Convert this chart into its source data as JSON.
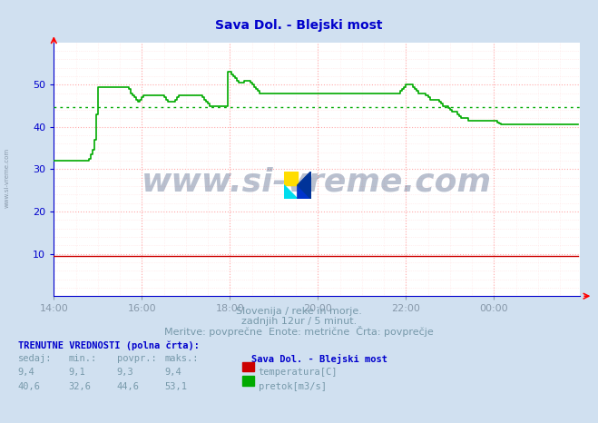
{
  "title": "Sava Dol. - Blejski most",
  "title_color": "#0000cc",
  "bg_color": "#d0e0f0",
  "plot_bg_color": "#ffffff",
  "grid_color_major": "#ffaaaa",
  "grid_color_minor": "#ffe0e0",
  "xlabel_color": "#8899aa",
  "ylabel_color": "#0000cc",
  "xlim": [
    0,
    287
  ],
  "ylim": [
    0,
    60
  ],
  "yticks": [
    10,
    20,
    30,
    40,
    50
  ],
  "xtick_labels": [
    "14:00",
    "16:00",
    "18:00",
    "20:00",
    "22:00",
    "00:00"
  ],
  "xtick_positions": [
    0,
    48,
    96,
    144,
    192,
    240
  ],
  "avg_pretok": 44.6,
  "avg_temperatura": 9.3,
  "watermark": "www.si-vreme.com",
  "sub_text1": "Slovenija / reke in morje.",
  "sub_text2": "zadnjih 12ur / 5 minut.",
  "sub_text3": "Meritve: povprečne  Enote: metrične  Črta: povprečje",
  "footer_bold": "TRENUTNE VREDNOSTI (polna črta):",
  "footer_cols": [
    "sedaj:",
    "min.:",
    "povpr.:",
    "maks.:"
  ],
  "footer_station": "Sava Dol. - Blejski most",
  "footer_temp": {
    "sedaj": "9,4",
    "min": "9,1",
    "povpr": "9,3",
    "maks": "9,4"
  },
  "footer_pretok": {
    "sedaj": "40,6",
    "min": "32,6",
    "povpr": "44,6",
    "maks": "53,1"
  },
  "temp_color": "#cc0000",
  "pretok_color": "#00aa00",
  "pretok_data": [
    32.0,
    32.0,
    32.0,
    32.0,
    32.0,
    32.0,
    32.0,
    32.0,
    32.0,
    32.0,
    32.0,
    32.0,
    32.0,
    32.0,
    32.0,
    32.0,
    32.0,
    32.0,
    32.0,
    32.5,
    33.5,
    34.5,
    37.0,
    43.0,
    49.5,
    49.5,
    49.5,
    49.5,
    49.5,
    49.5,
    49.5,
    49.5,
    49.5,
    49.5,
    49.5,
    49.5,
    49.5,
    49.5,
    49.5,
    49.5,
    49.5,
    49.0,
    48.0,
    47.5,
    47.0,
    46.5,
    46.0,
    46.5,
    47.0,
    47.5,
    47.5,
    47.5,
    47.5,
    47.5,
    47.5,
    47.5,
    47.5,
    47.5,
    47.5,
    47.5,
    47.0,
    46.5,
    46.0,
    46.0,
    46.0,
    46.0,
    46.5,
    47.0,
    47.5,
    47.5,
    47.5,
    47.5,
    47.5,
    47.5,
    47.5,
    47.5,
    47.5,
    47.5,
    47.5,
    47.5,
    47.5,
    47.0,
    46.5,
    46.0,
    45.5,
    45.0,
    45.0,
    45.0,
    45.0,
    45.0,
    45.0,
    45.0,
    45.0,
    45.0,
    45.0,
    53.0,
    53.0,
    52.5,
    52.0,
    51.5,
    51.0,
    50.5,
    50.5,
    50.5,
    51.0,
    51.0,
    51.0,
    50.5,
    50.0,
    49.5,
    49.0,
    48.5,
    48.0,
    48.0,
    48.0,
    48.0,
    48.0,
    48.0,
    48.0,
    48.0,
    48.0,
    48.0,
    48.0,
    48.0,
    48.0,
    48.0,
    48.0,
    48.0,
    48.0,
    48.0,
    48.0,
    48.0,
    48.0,
    48.0,
    48.0,
    48.0,
    48.0,
    48.0,
    48.0,
    48.0,
    48.0,
    48.0,
    48.0,
    48.0,
    48.0,
    48.0,
    48.0,
    48.0,
    48.0,
    48.0,
    48.0,
    48.0,
    48.0,
    48.0,
    48.0,
    48.0,
    48.0,
    48.0,
    48.0,
    48.0,
    48.0,
    48.0,
    48.0,
    48.0,
    48.0,
    48.0,
    48.0,
    48.0,
    48.0,
    48.0,
    48.0,
    48.0,
    48.0,
    48.0,
    48.0,
    48.0,
    48.0,
    48.0,
    48.0,
    48.0,
    48.0,
    48.0,
    48.0,
    48.0,
    48.0,
    48.0,
    48.0,
    48.0,
    48.0,
    48.5,
    49.0,
    49.5,
    50.0,
    50.0,
    50.0,
    50.0,
    49.5,
    49.0,
    48.5,
    48.0,
    48.0,
    48.0,
    48.0,
    47.5,
    47.0,
    46.5,
    46.5,
    46.5,
    46.5,
    46.5,
    46.0,
    45.5,
    45.0,
    45.0,
    45.0,
    44.5,
    44.0,
    43.5,
    43.5,
    43.5,
    43.0,
    42.5,
    42.0,
    42.0,
    42.0,
    42.0,
    41.5,
    41.5,
    41.5,
    41.5,
    41.5,
    41.5,
    41.5,
    41.5,
    41.5,
    41.5,
    41.5,
    41.5,
    41.5,
    41.5,
    41.5,
    41.5,
    41.0,
    40.8,
    40.6,
    40.6,
    40.6,
    40.6,
    40.6,
    40.6,
    40.6,
    40.6,
    40.6,
    40.6,
    40.6,
    40.6,
    40.6,
    40.6,
    40.6,
    40.6,
    40.6,
    40.6,
    40.6,
    40.6,
    40.6,
    40.6,
    40.6,
    40.6,
    40.6,
    40.6,
    40.6,
    40.6,
    40.6,
    40.6,
    40.6,
    40.6,
    40.6,
    40.6,
    40.6,
    40.6,
    40.6,
    40.6,
    40.6,
    40.6,
    40.6,
    40.6,
    40.6
  ],
  "temp_data_val": 9.4
}
